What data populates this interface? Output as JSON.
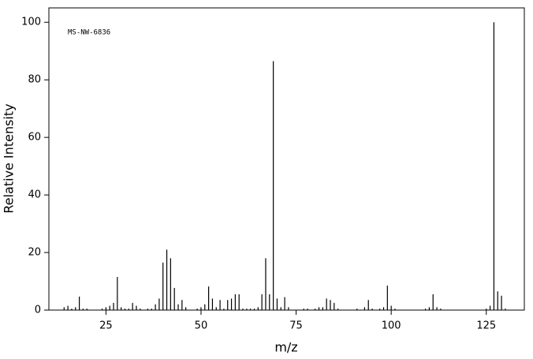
{
  "chart_data": {
    "type": "stem",
    "annotation": "MS-NW-6836",
    "x_label": "m/z",
    "y_label": "Relative Intensity",
    "color": "#000000",
    "xlim": [
      10,
      135
    ],
    "ylim": [
      0,
      105
    ],
    "xticks": [
      25,
      50,
      75,
      100,
      125
    ],
    "yticks": [
      0,
      20,
      40,
      60,
      80,
      100
    ],
    "x": [
      14,
      15,
      16,
      17,
      18,
      19,
      20,
      24,
      25,
      26,
      27,
      28,
      29,
      30,
      31,
      32,
      33,
      34,
      36,
      37,
      38,
      39,
      40,
      41,
      42,
      43,
      44,
      45,
      46,
      49,
      50,
      51,
      52,
      53,
      54,
      55,
      56,
      57,
      58,
      59,
      60,
      61,
      62,
      63,
      64,
      65,
      66,
      67,
      68,
      69,
      70,
      71,
      72,
      73,
      77,
      78,
      80,
      81,
      82,
      83,
      84,
      85,
      86,
      91,
      93,
      94,
      95,
      97,
      98,
      99,
      100,
      101,
      109,
      110,
      111,
      112,
      113,
      125,
      126,
      127,
      128,
      129,
      130
    ],
    "values": [
      1,
      1.5,
      0.5,
      1,
      4.7,
      0.5,
      0.5,
      0.5,
      1,
      1.5,
      2.5,
      11.5,
      1,
      0.5,
      0.5,
      2.5,
      1.5,
      0.5,
      0.5,
      0.5,
      2,
      4,
      16.5,
      21,
      18,
      7.7,
      2,
      3.5,
      1,
      0.5,
      1,
      2,
      8.2,
      4,
      1,
      3.5,
      0.5,
      3.5,
      4,
      5.5,
      5.5,
      0.5,
      0.5,
      0.5,
      0.5,
      1,
      5.5,
      18,
      5.5,
      86.5,
      4,
      1,
      4.5,
      1,
      0.5,
      0.5,
      0.5,
      1,
      1,
      4,
      3.5,
      2.5,
      0.5,
      0.5,
      1,
      3.5,
      0.5,
      0.5,
      1,
      8.5,
      1.5,
      0.5,
      0.5,
      1,
      5.5,
      1,
      0.5,
      0.5,
      1.5,
      100,
      6.5,
      5,
      0.5
    ]
  }
}
